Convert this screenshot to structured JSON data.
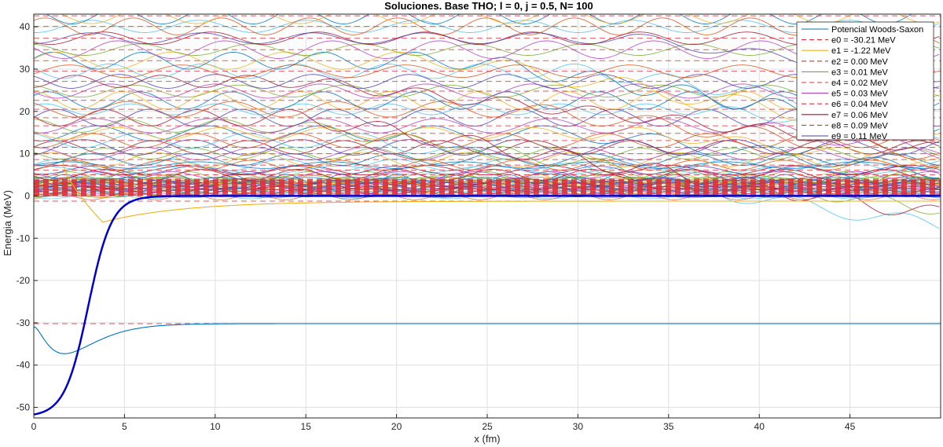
{
  "chart_data": {
    "type": "line",
    "title": "Soluciones. Base THO; l = 0, j = 0.5, N= 100",
    "xlabel": "x (fm)",
    "ylabel": "Energia (MeV)",
    "xlim": [
      0,
      50
    ],
    "ylim": [
      -52.5,
      43
    ],
    "xticks": [
      0,
      5,
      10,
      15,
      20,
      25,
      30,
      35,
      40,
      45
    ],
    "yticks": [
      -50,
      -40,
      -30,
      -20,
      -10,
      0,
      10,
      20,
      30,
      40
    ],
    "grid": true,
    "legend_position": "top-right",
    "potential": {
      "name": "Potencial Woods-Saxon",
      "V0": -52.2,
      "R": 3.0,
      "a": 0.65,
      "color": "#0000CC"
    },
    "series": [
      {
        "name": "Potencial Woods-Saxon",
        "style": "solid",
        "color": "#0072BD"
      },
      {
        "name": "e0 = -30.21 MeV",
        "style": "dashed",
        "color": "#D95319",
        "energy": -30.21
      },
      {
        "name": "e1 = -1.22 MeV",
        "style": "solid",
        "color": "#EDB120",
        "energy": -1.22
      },
      {
        "name": "e2 =  0.00 MeV",
        "style": "dashed",
        "color": "#D95319",
        "energy": 0.0
      },
      {
        "name": "e3 =  0.01 MeV",
        "style": "solid",
        "color": "#77AC30",
        "energy": 0.01
      },
      {
        "name": "e4 =  0.02 MeV",
        "style": "dashed",
        "color": "#D95319",
        "energy": 0.02
      },
      {
        "name": "e5 =  0.03 MeV",
        "style": "solid",
        "color": "#B040C0",
        "energy": 0.03
      },
      {
        "name": "e6 =  0.04 MeV",
        "style": "dashed",
        "color": "#D95319",
        "energy": 0.04
      },
      {
        "name": "e7 =  0.06 MeV",
        "style": "solid",
        "color": "#A2142F",
        "energy": 0.06
      },
      {
        "name": "e8 =  0.09 MeV",
        "style": "dashed",
        "color": "#D95319",
        "energy": 0.09
      },
      {
        "name": "e9 =  0.11 MeV",
        "style": "solid",
        "color": "#4B3BB0",
        "energy": 0.11
      }
    ],
    "bound_state_wavefunctions": [
      {
        "energy": -30.21,
        "color": "#0072BD",
        "min_value": -37.3,
        "min_x": 1.7,
        "start_value": -31.0
      },
      {
        "energy": -1.22,
        "color": "#EDB120",
        "min_value": -6.2,
        "min_x": 3.8
      }
    ],
    "upper_energy_levels": [
      1.0,
      1.6,
      2.3,
      3.1,
      4.0,
      5.0,
      6.1,
      7.3,
      8.6,
      10.0,
      11.5,
      13.1,
      14.8,
      16.6,
      18.5,
      20.5,
      22.6,
      24.8,
      27.1,
      29.5,
      32.0,
      34.6,
      37.3,
      40.1,
      42.6
    ],
    "wave_palette": [
      "#0072BD",
      "#EDB120",
      "#77AC30",
      "#B040C0",
      "#A2142F",
      "#4B3BB0",
      "#4DBEEE",
      "#D95319"
    ]
  }
}
